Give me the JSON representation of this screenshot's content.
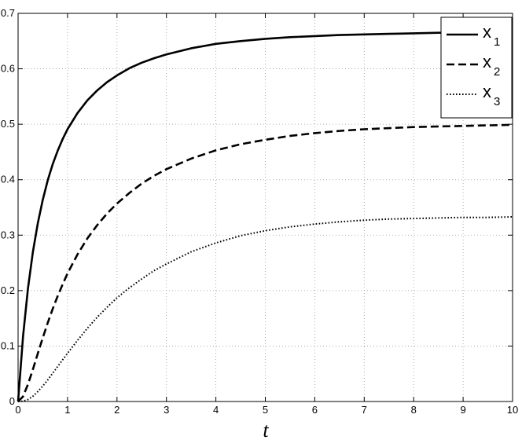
{
  "chart_data": {
    "type": "line",
    "title": "",
    "xlabel": "t",
    "ylabel": "",
    "xlim": [
      0,
      10
    ],
    "ylim": [
      0,
      0.7
    ],
    "xticks": [
      0,
      1,
      2,
      3,
      4,
      5,
      6,
      7,
      8,
      9,
      10
    ],
    "yticks": [
      0,
      0.1,
      0.2,
      0.3,
      0.4,
      0.5,
      0.6,
      0.7
    ],
    "grid": true,
    "legend_position": "top-right",
    "x": [
      0,
      0.1,
      0.2,
      0.3,
      0.4,
      0.5,
      0.6,
      0.7,
      0.8,
      0.9,
      1.0,
      1.2,
      1.4,
      1.6,
      1.8,
      2.0,
      2.25,
      2.5,
      2.75,
      3.0,
      3.5,
      4.0,
      4.5,
      5.0,
      5.5,
      6.0,
      6.5,
      7.0,
      7.5,
      8.0,
      8.5,
      9.0,
      9.5,
      10.0
    ],
    "series": [
      {
        "name": "x",
        "subscript": "1",
        "style": "solid",
        "color": "#000000",
        "values": [
          0,
          0.117,
          0.204,
          0.27,
          0.322,
          0.364,
          0.399,
          0.428,
          0.452,
          0.473,
          0.491,
          0.52,
          0.543,
          0.561,
          0.576,
          0.588,
          0.601,
          0.611,
          0.619,
          0.626,
          0.637,
          0.645,
          0.65,
          0.654,
          0.657,
          0.659,
          0.661,
          0.662,
          0.663,
          0.664,
          0.665,
          0.665,
          0.666,
          0.666
        ]
      },
      {
        "name": "x",
        "subscript": "2",
        "style": "dashed",
        "color": "#000000",
        "values": [
          0,
          0.009,
          0.031,
          0.058,
          0.087,
          0.115,
          0.142,
          0.167,
          0.19,
          0.211,
          0.231,
          0.265,
          0.294,
          0.318,
          0.339,
          0.357,
          0.376,
          0.393,
          0.407,
          0.419,
          0.438,
          0.453,
          0.464,
          0.472,
          0.479,
          0.484,
          0.488,
          0.491,
          0.493,
          0.495,
          0.496,
          0.497,
          0.498,
          0.499
        ]
      },
      {
        "name": "x",
        "subscript": "3",
        "style": "dotted",
        "color": "#000000",
        "values": [
          0,
          0.0005,
          0.0035,
          0.0095,
          0.018,
          0.028,
          0.039,
          0.051,
          0.063,
          0.075,
          0.087,
          0.11,
          0.132,
          0.152,
          0.17,
          0.187,
          0.205,
          0.221,
          0.236,
          0.248,
          0.27,
          0.286,
          0.299,
          0.308,
          0.315,
          0.32,
          0.324,
          0.327,
          0.329,
          0.33,
          0.331,
          0.332,
          0.332,
          0.333
        ]
      }
    ]
  }
}
